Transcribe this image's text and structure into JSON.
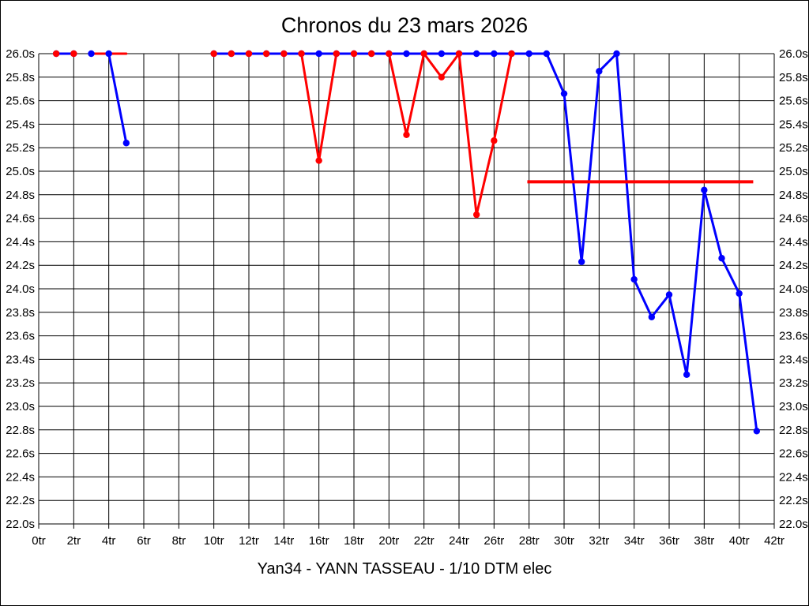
{
  "page": {
    "background": "#ffffff",
    "border_color": "#000000",
    "text_color": "#000000",
    "grid_color": "#000000"
  },
  "chart_data": {
    "type": "line",
    "title": "Chronos du 23 mars 2026",
    "subtitle": "Yan34 - YANN TASSEAU - 1/10 DTM elec",
    "x_unit": "tr",
    "y_unit": "s",
    "xlim": [
      0,
      42
    ],
    "ylim": [
      22.0,
      26.0
    ],
    "grid": true,
    "legend": "none",
    "x_ticks": [
      {
        "value": 0,
        "label": "0tr"
      },
      {
        "value": 2,
        "label": "2tr"
      },
      {
        "value": 4,
        "label": "4tr"
      },
      {
        "value": 6,
        "label": "6tr"
      },
      {
        "value": 8,
        "label": "8tr"
      },
      {
        "value": 10,
        "label": "10tr"
      },
      {
        "value": 12,
        "label": "12tr"
      },
      {
        "value": 14,
        "label": "14tr"
      },
      {
        "value": 16,
        "label": "16tr"
      },
      {
        "value": 18,
        "label": "18tr"
      },
      {
        "value": 20,
        "label": "20tr"
      },
      {
        "value": 22,
        "label": "22tr"
      },
      {
        "value": 24,
        "label": "24tr"
      },
      {
        "value": 26,
        "label": "26tr"
      },
      {
        "value": 28,
        "label": "28tr"
      },
      {
        "value": 30,
        "label": "30tr"
      },
      {
        "value": 32,
        "label": "32tr"
      },
      {
        "value": 34,
        "label": "34tr"
      },
      {
        "value": 36,
        "label": "36tr"
      },
      {
        "value": 38,
        "label": "38tr"
      },
      {
        "value": 40,
        "label": "40tr"
      },
      {
        "value": 42,
        "label": "42tr"
      }
    ],
    "y_ticks": [
      {
        "value": 26.0,
        "label": "26.0s"
      },
      {
        "value": 25.8,
        "label": "25.8s"
      },
      {
        "value": 25.6,
        "label": "25.6s"
      },
      {
        "value": 25.4,
        "label": "25.4s"
      },
      {
        "value": 25.2,
        "label": "25.2s"
      },
      {
        "value": 25.0,
        "label": "25.0s"
      },
      {
        "value": 24.8,
        "label": "24.8s"
      },
      {
        "value": 24.6,
        "label": "24.6s"
      },
      {
        "value": 24.4,
        "label": "24.4s"
      },
      {
        "value": 24.2,
        "label": "24.2s"
      },
      {
        "value": 24.0,
        "label": "24.0s"
      },
      {
        "value": 23.8,
        "label": "23.8s"
      },
      {
        "value": 23.6,
        "label": "23.6s"
      },
      {
        "value": 23.4,
        "label": "23.4s"
      },
      {
        "value": 23.2,
        "label": "23.2s"
      },
      {
        "value": 23.0,
        "label": "23.0s"
      },
      {
        "value": 22.8,
        "label": "22.8s"
      },
      {
        "value": 22.6,
        "label": "22.6s"
      },
      {
        "value": 22.4,
        "label": "22.4s"
      },
      {
        "value": 22.2,
        "label": "22.2s"
      },
      {
        "value": 22.0,
        "label": "22.0s"
      }
    ],
    "series": [
      {
        "name": "red-lap-times",
        "color": "#ff0000",
        "segments": [
          {
            "markers": true,
            "above": false,
            "points": [
              [
                1,
                26.0
              ],
              [
                2,
                26.0
              ]
            ]
          },
          {
            "markers": false,
            "above": true,
            "points": [
              [
                3,
                26.0
              ],
              [
                4,
                26.0
              ],
              [
                5,
                26.0
              ]
            ]
          },
          {
            "markers": true,
            "above": false,
            "points": [
              [
                10,
                26.0
              ],
              [
                11,
                26.0
              ],
              [
                12,
                26.0
              ],
              [
                13,
                26.0
              ],
              [
                14,
                26.0
              ],
              [
                15,
                26.0
              ],
              [
                16,
                25.09
              ],
              [
                17,
                26.0
              ],
              [
                18,
                26.0
              ],
              [
                19,
                26.0
              ],
              [
                20,
                26.0
              ],
              [
                21,
                25.31
              ],
              [
                22,
                26.0
              ],
              [
                23,
                25.8
              ],
              [
                24,
                26.0
              ],
              [
                25,
                24.63
              ],
              [
                26,
                25.26
              ],
              [
                27,
                26.0
              ]
            ]
          }
        ]
      },
      {
        "name": "blue-lap-times",
        "color": "#0000ff",
        "segments": [
          {
            "markers": true,
            "above": false,
            "points": [
              [
                1,
                26.0
              ],
              [
                2,
                26.0
              ]
            ]
          },
          {
            "markers": true,
            "above": false,
            "points": [
              [
                3,
                26.0
              ],
              [
                4,
                26.0
              ],
              [
                5,
                25.24
              ]
            ]
          },
          {
            "markers": true,
            "above": false,
            "points": [
              [
                10,
                26.0
              ],
              [
                11,
                26.0
              ],
              [
                12,
                26.0
              ],
              [
                13,
                26.0
              ],
              [
                14,
                26.0
              ],
              [
                15,
                26.0
              ],
              [
                16,
                26.0
              ],
              [
                17,
                26.0
              ],
              [
                18,
                26.0
              ],
              [
                19,
                26.0
              ],
              [
                20,
                26.0
              ],
              [
                21,
                26.0
              ],
              [
                22,
                26.0
              ],
              [
                23,
                26.0
              ],
              [
                24,
                26.0
              ],
              [
                25,
                26.0
              ],
              [
                26,
                26.0
              ],
              [
                27,
                26.0
              ],
              [
                28,
                26.0
              ],
              [
                29,
                26.0
              ],
              [
                30,
                25.66
              ],
              [
                31,
                24.23
              ],
              [
                32,
                25.85
              ],
              [
                33,
                26.0
              ],
              [
                34,
                24.08
              ],
              [
                35,
                23.76
              ],
              [
                36,
                23.95
              ],
              [
                37,
                23.27
              ],
              [
                38,
                24.84
              ],
              [
                39,
                24.26
              ],
              [
                40,
                23.96
              ],
              [
                41,
                22.79
              ]
            ]
          }
        ]
      }
    ],
    "reference_line": {
      "name": "red-average-line",
      "color": "#ff0000",
      "y": 24.91,
      "x_start": 27.9,
      "x_end": 40.8
    }
  }
}
